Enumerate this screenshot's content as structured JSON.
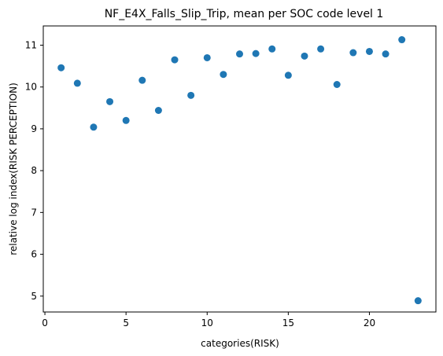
{
  "chart_data": {
    "type": "scatter",
    "title": "NF_E4X_Falls_Slip_Trip, mean per SOC code level 1",
    "xlabel": "categories(RISK)",
    "ylabel": "relative log index(RISK PERCEPTION)",
    "xlim": [
      -0.1,
      24.1
    ],
    "ylim": [
      4.62,
      11.46
    ],
    "xticks": [
      0,
      5,
      10,
      15,
      20
    ],
    "yticks": [
      5,
      6,
      7,
      8,
      9,
      10,
      11
    ],
    "grid": false,
    "color": "#1f77b4",
    "points": [
      {
        "x": 1,
        "y": 10.46
      },
      {
        "x": 2,
        "y": 10.09
      },
      {
        "x": 3,
        "y": 9.04
      },
      {
        "x": 4,
        "y": 9.65
      },
      {
        "x": 5,
        "y": 9.2
      },
      {
        "x": 6,
        "y": 10.16
      },
      {
        "x": 7,
        "y": 9.44
      },
      {
        "x": 8,
        "y": 10.65
      },
      {
        "x": 9,
        "y": 9.8
      },
      {
        "x": 10,
        "y": 10.7
      },
      {
        "x": 11,
        "y": 10.3
      },
      {
        "x": 12,
        "y": 10.79
      },
      {
        "x": 13,
        "y": 10.8
      },
      {
        "x": 14,
        "y": 10.91
      },
      {
        "x": 15,
        "y": 10.28
      },
      {
        "x": 16,
        "y": 10.74
      },
      {
        "x": 17,
        "y": 10.91
      },
      {
        "x": 18,
        "y": 10.06
      },
      {
        "x": 19,
        "y": 10.82
      },
      {
        "x": 20,
        "y": 10.85
      },
      {
        "x": 21,
        "y": 10.79
      },
      {
        "x": 22,
        "y": 11.13
      },
      {
        "x": 23,
        "y": 4.89
      }
    ]
  }
}
